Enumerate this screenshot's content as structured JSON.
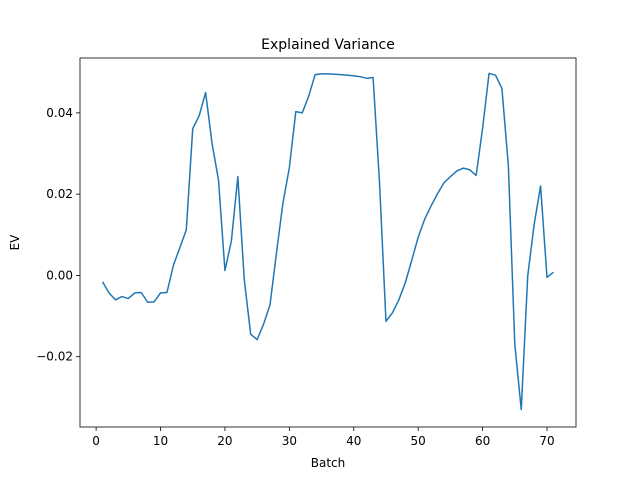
{
  "chart_data": {
    "type": "line",
    "title": "Explained Variance",
    "xlabel": "Batch",
    "ylabel": "EV",
    "xlim": [
      -2.5,
      74.5
    ],
    "ylim": [
      -0.0373,
      0.0535
    ],
    "xticks": [
      0,
      10,
      20,
      30,
      40,
      50,
      60,
      70
    ],
    "xtick_labels": [
      "0",
      "10",
      "20",
      "30",
      "40",
      "50",
      "60",
      "70"
    ],
    "yticks": [
      -0.02,
      0.0,
      0.02,
      0.04
    ],
    "ytick_labels": [
      "−0.02",
      "0.00",
      "0.02",
      "0.04"
    ],
    "grid": false,
    "series": [
      {
        "color": "#1f77b4",
        "x": [
          1,
          2,
          3,
          4,
          5,
          6,
          7,
          8,
          9,
          10,
          11,
          12,
          13,
          14,
          15,
          16,
          17,
          18,
          19,
          20,
          21,
          22,
          23,
          24,
          25,
          26,
          27,
          28,
          29,
          30,
          31,
          32,
          33,
          34,
          35,
          36,
          37,
          38,
          39,
          40,
          41,
          42,
          43,
          44,
          45,
          46,
          47,
          48,
          49,
          50,
          51,
          52,
          53,
          54,
          55,
          56,
          57,
          58,
          59,
          60,
          61,
          62,
          63,
          64,
          65,
          66,
          67,
          68,
          69,
          70,
          71
        ],
        "y": [
          -0.0016,
          -0.0043,
          -0.006,
          -0.0052,
          -0.0057,
          -0.0043,
          -0.0042,
          -0.0066,
          -0.0065,
          -0.0043,
          -0.0042,
          0.0025,
          0.0068,
          0.0112,
          0.0361,
          0.0393,
          0.045,
          0.0325,
          0.0235,
          0.0012,
          0.0085,
          0.0243,
          -0.001,
          -0.0145,
          -0.0158,
          -0.012,
          -0.0072,
          0.0055,
          0.0178,
          0.0265,
          0.0403,
          0.04,
          0.0441,
          0.0494,
          0.0496,
          0.0496,
          0.0495,
          0.0494,
          0.0493,
          0.0491,
          0.0489,
          0.0485,
          0.0487,
          0.0228,
          -0.0113,
          -0.0092,
          -0.006,
          -0.0018,
          0.0037,
          0.0094,
          0.0138,
          0.0171,
          0.0201,
          0.0228,
          0.0243,
          0.0257,
          0.0264,
          0.026,
          0.0246,
          0.0362,
          0.0497,
          0.0493,
          0.046,
          0.027,
          -0.017,
          -0.033,
          -0.0002,
          0.0125,
          0.022,
          -0.0005,
          0.0008
        ]
      }
    ]
  }
}
